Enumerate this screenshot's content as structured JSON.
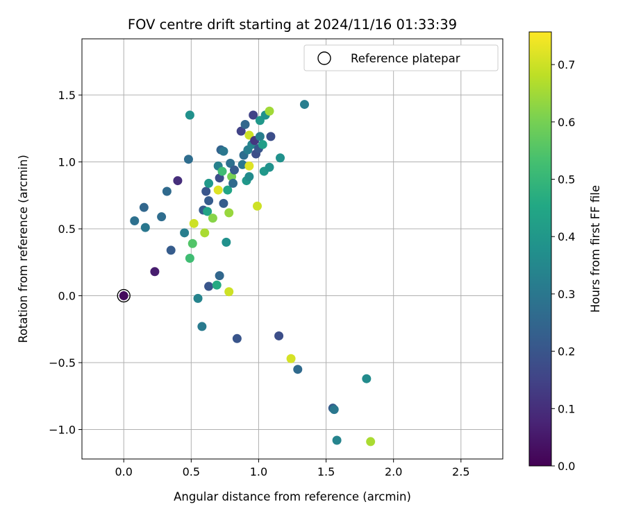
{
  "chart_data": {
    "type": "scatter",
    "title": "FOV centre drift starting at 2024/11/16 01:33:39",
    "xlabel": "Angular distance from reference (arcmin)",
    "ylabel": "Rotation from reference (arcmin)",
    "xlim": [
      -0.31,
      2.81
    ],
    "ylim": [
      -1.22,
      1.92
    ],
    "x_ticks": [
      0.0,
      0.5,
      1.0,
      1.5,
      2.0,
      2.5
    ],
    "x_tick_labels": [
      "0.0",
      "0.5",
      "1.0",
      "1.5",
      "2.0",
      "2.5"
    ],
    "y_ticks": [
      -1.0,
      -0.5,
      0.0,
      0.5,
      1.0,
      1.5
    ],
    "y_tick_labels": [
      "−1.0",
      "−0.5",
      "0.0",
      "0.5",
      "1.0",
      "1.5"
    ],
    "grid": true,
    "legend": {
      "location": "upper right",
      "entries": [
        "Reference platepar"
      ]
    },
    "colorbar": {
      "label": "Hours from first FF file",
      "colormap": "viridis",
      "range": [
        0.0,
        0.757
      ],
      "ticks": [
        0.0,
        0.1,
        0.2,
        0.3,
        0.4,
        0.5,
        0.6,
        0.7
      ],
      "tick_labels": [
        "0.0",
        "0.1",
        "0.2",
        "0.3",
        "0.4",
        "0.5",
        "0.6",
        "0.7"
      ]
    },
    "reference_point": {
      "x": 0.0,
      "y": 0.0
    },
    "points": [
      {
        "x": 0.0,
        "y": 0.0,
        "c": 0.02
      },
      {
        "x": 0.23,
        "y": 0.18,
        "c": 0.06
      },
      {
        "x": 0.4,
        "y": 0.86,
        "c": 0.1
      },
      {
        "x": 0.08,
        "y": 0.56,
        "c": 0.28
      },
      {
        "x": 0.15,
        "y": 0.66,
        "c": 0.25
      },
      {
        "x": 0.16,
        "y": 0.51,
        "c": 0.3
      },
      {
        "x": 0.28,
        "y": 0.59,
        "c": 0.27
      },
      {
        "x": 0.32,
        "y": 0.78,
        "c": 0.26
      },
      {
        "x": 0.35,
        "y": 0.34,
        "c": 0.22
      },
      {
        "x": 0.45,
        "y": 0.47,
        "c": 0.32
      },
      {
        "x": 0.48,
        "y": 1.02,
        "c": 0.27
      },
      {
        "x": 0.49,
        "y": 1.35,
        "c": 0.38
      },
      {
        "x": 0.49,
        "y": 0.28,
        "c": 0.52
      },
      {
        "x": 0.51,
        "y": 0.39,
        "c": 0.55
      },
      {
        "x": 0.52,
        "y": 0.54,
        "c": 0.7
      },
      {
        "x": 0.55,
        "y": -0.02,
        "c": 0.34
      },
      {
        "x": 0.58,
        "y": -0.23,
        "c": 0.31
      },
      {
        "x": 0.59,
        "y": 0.64,
        "c": 0.22
      },
      {
        "x": 0.6,
        "y": 0.47,
        "c": 0.66
      },
      {
        "x": 0.61,
        "y": 0.78,
        "c": 0.2
      },
      {
        "x": 0.62,
        "y": 0.63,
        "c": 0.44
      },
      {
        "x": 0.63,
        "y": 0.84,
        "c": 0.4
      },
      {
        "x": 0.63,
        "y": 0.71,
        "c": 0.22
      },
      {
        "x": 0.63,
        "y": 0.07,
        "c": 0.2
      },
      {
        "x": 0.66,
        "y": 0.58,
        "c": 0.62
      },
      {
        "x": 0.69,
        "y": 0.08,
        "c": 0.46
      },
      {
        "x": 0.7,
        "y": 0.97,
        "c": 0.33
      },
      {
        "x": 0.7,
        "y": 0.79,
        "c": 0.72
      },
      {
        "x": 0.71,
        "y": 0.88,
        "c": 0.18
      },
      {
        "x": 0.71,
        "y": 0.15,
        "c": 0.25
      },
      {
        "x": 0.72,
        "y": 1.09,
        "c": 0.24
      },
      {
        "x": 0.73,
        "y": 0.93,
        "c": 0.52
      },
      {
        "x": 0.74,
        "y": 0.69,
        "c": 0.22
      },
      {
        "x": 0.74,
        "y": 1.08,
        "c": 0.3
      },
      {
        "x": 0.76,
        "y": 0.4,
        "c": 0.38
      },
      {
        "x": 0.77,
        "y": 0.79,
        "c": 0.44
      },
      {
        "x": 0.78,
        "y": 0.62,
        "c": 0.64
      },
      {
        "x": 0.78,
        "y": 0.03,
        "c": 0.7
      },
      {
        "x": 0.79,
        "y": 0.99,
        "c": 0.28
      },
      {
        "x": 0.8,
        "y": 0.89,
        "c": 0.6
      },
      {
        "x": 0.81,
        "y": 0.84,
        "c": 0.26
      },
      {
        "x": 0.82,
        "y": 0.94,
        "c": 0.22
      },
      {
        "x": 0.84,
        "y": -0.32,
        "c": 0.2
      },
      {
        "x": 0.87,
        "y": 1.23,
        "c": 0.15
      },
      {
        "x": 0.88,
        "y": 0.98,
        "c": 0.3
      },
      {
        "x": 0.89,
        "y": 1.05,
        "c": 0.27
      },
      {
        "x": 0.9,
        "y": 1.28,
        "c": 0.25
      },
      {
        "x": 0.91,
        "y": 0.86,
        "c": 0.4
      },
      {
        "x": 0.92,
        "y": 1.09,
        "c": 0.32
      },
      {
        "x": 0.93,
        "y": 0.97,
        "c": 0.72
      },
      {
        "x": 0.93,
        "y": 0.89,
        "c": 0.36
      },
      {
        "x": 0.93,
        "y": 1.2,
        "c": 0.7
      },
      {
        "x": 0.95,
        "y": 1.13,
        "c": 0.34
      },
      {
        "x": 0.96,
        "y": 1.35,
        "c": 0.15
      },
      {
        "x": 0.97,
        "y": 1.16,
        "c": 0.12
      },
      {
        "x": 0.98,
        "y": 1.06,
        "c": 0.18
      },
      {
        "x": 0.99,
        "y": 0.67,
        "c": 0.7
      },
      {
        "x": 1.0,
        "y": 1.1,
        "c": 0.2
      },
      {
        "x": 1.01,
        "y": 1.19,
        "c": 0.32
      },
      {
        "x": 1.01,
        "y": 1.31,
        "c": 0.4
      },
      {
        "x": 1.03,
        "y": 1.13,
        "c": 0.42
      },
      {
        "x": 1.04,
        "y": 0.93,
        "c": 0.4
      },
      {
        "x": 1.05,
        "y": 1.35,
        "c": 0.38
      },
      {
        "x": 1.08,
        "y": 1.38,
        "c": 0.65
      },
      {
        "x": 1.08,
        "y": 0.96,
        "c": 0.38
      },
      {
        "x": 1.09,
        "y": 1.19,
        "c": 0.18
      },
      {
        "x": 1.15,
        "y": -0.3,
        "c": 0.18
      },
      {
        "x": 1.16,
        "y": 1.03,
        "c": 0.38
      },
      {
        "x": 1.24,
        "y": -0.47,
        "c": 0.71
      },
      {
        "x": 1.29,
        "y": -0.55,
        "c": 0.26
      },
      {
        "x": 1.34,
        "y": 1.43,
        "c": 0.32
      },
      {
        "x": 1.55,
        "y": -0.84,
        "c": 0.22
      },
      {
        "x": 1.56,
        "y": -0.85,
        "c": 0.3
      },
      {
        "x": 1.58,
        "y": -1.08,
        "c": 0.34
      },
      {
        "x": 1.8,
        "y": -0.62,
        "c": 0.36
      },
      {
        "x": 1.83,
        "y": -1.09,
        "c": 0.66
      }
    ]
  }
}
